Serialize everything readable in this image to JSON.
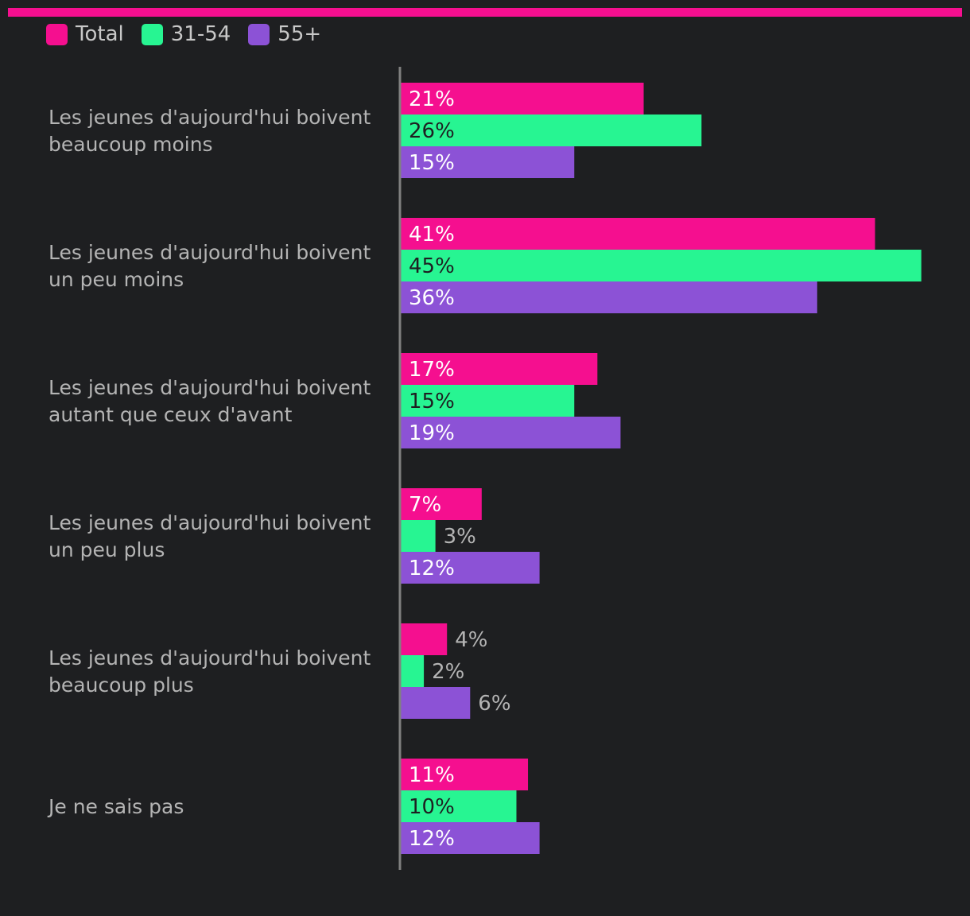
{
  "colors": {
    "total": "#f50f8f",
    "age_31_54": "#27f592",
    "age_55_plus": "#8c52d6",
    "accent_bar": "#f50f8f",
    "background": "#1e1f21",
    "axis": "#808080",
    "label_on_bar_light": "#ffffff",
    "label_on_bar_dark": "#1e1f21",
    "label_outside": "#b4b4b4"
  },
  "legend": {
    "items": [
      {
        "label": "Total",
        "color": "#f50f8f"
      },
      {
        "label": "31-54",
        "color": "#27f592"
      },
      {
        "label": "55+",
        "color": "#8c52d6"
      }
    ],
    "placement": "top-left"
  },
  "chart_data": {
    "type": "bar",
    "orientation": "horizontal",
    "categories": [
      [
        "Les jeunes d'aujourd'hui boivent",
        "beaucoup moins"
      ],
      [
        "Les jeunes d'aujourd'hui boivent",
        "un peu moins"
      ],
      [
        "Les jeunes d'aujourd'hui boivent",
        "autant que ceux d'avant"
      ],
      [
        "Les jeunes d'aujourd'hui boivent",
        "un peu plus"
      ],
      [
        "Les jeunes d'aujourd'hui boivent",
        "beaucoup plus"
      ],
      [
        "Je ne sais pas"
      ]
    ],
    "series": [
      {
        "name": "Total",
        "color": "#f50f8f",
        "values": [
          21,
          41,
          17,
          7,
          4,
          11
        ]
      },
      {
        "name": "31-54",
        "color": "#27f592",
        "values": [
          26,
          45,
          15,
          3,
          2,
          10
        ]
      },
      {
        "name": "55+",
        "color": "#8c52d6",
        "values": [
          15,
          36,
          19,
          12,
          6,
          12
        ]
      }
    ],
    "value_suffix": "%",
    "xlim": [
      0,
      45
    ],
    "grid": false
  }
}
